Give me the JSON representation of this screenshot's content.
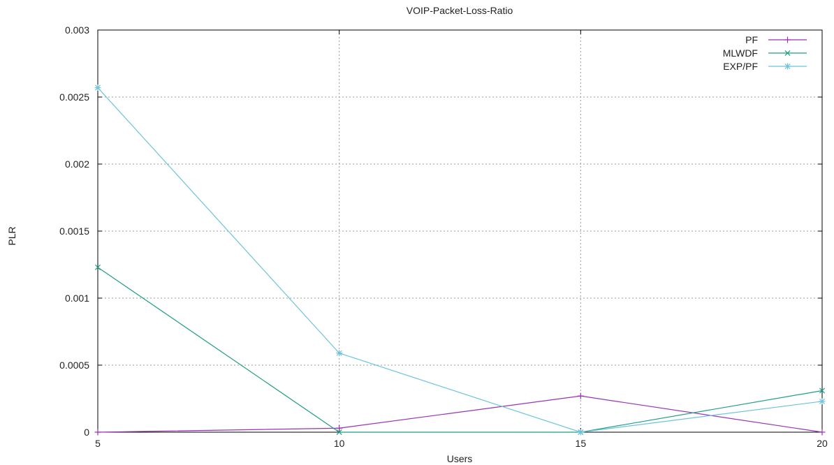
{
  "chart_data": {
    "type": "line",
    "title": "VOIP-Packet-Loss-Ratio",
    "xlabel": "Users",
    "ylabel": "PLR",
    "x": [
      5,
      10,
      15,
      20
    ],
    "xlim": [
      5,
      20
    ],
    "ylim": [
      0,
      0.003
    ],
    "xticks": [
      "5",
      "10",
      "15",
      "20"
    ],
    "yticks": [
      "0",
      "0.0005",
      "0.001",
      "0.0015",
      "0.002",
      "0.0025",
      "0.003"
    ],
    "grid": true,
    "legend_position": "top-right",
    "series": [
      {
        "name": "PF",
        "values": [
          0,
          3e-05,
          0.00027,
          0
        ],
        "color": "#9b30b6",
        "marker": "plus"
      },
      {
        "name": "MLWDF",
        "values": [
          0.00123,
          0,
          0,
          0.00031
        ],
        "color": "#1f9e85",
        "marker": "x"
      },
      {
        "name": "EXP/PF",
        "values": [
          0.00257,
          0.00059,
          0,
          0.00023
        ],
        "color": "#6cc3dc",
        "marker": "star"
      }
    ]
  }
}
